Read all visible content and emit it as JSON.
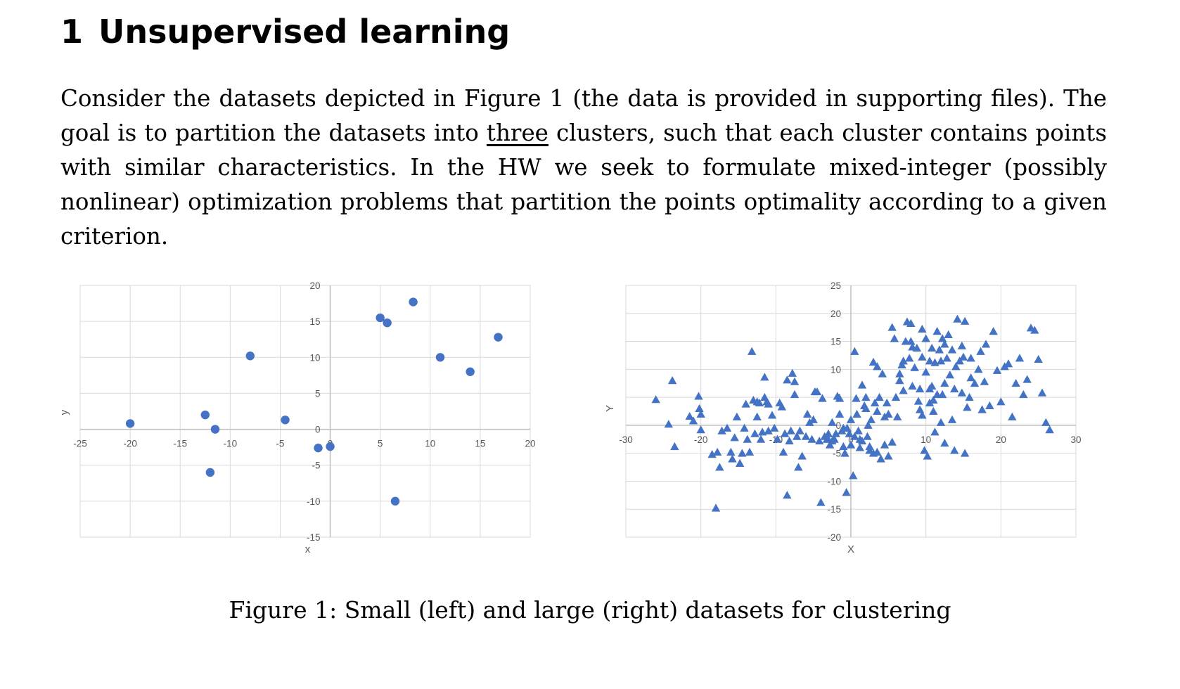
{
  "section": {
    "number": "1",
    "title": "Unsupervised learning"
  },
  "paragraph": {
    "before_underline": "Consider the datasets depicted in Figure 1 (the data is provided in supporting files). The goal is to partition the datasets into ",
    "underlined": "three",
    "after_underline": " clusters, such that each cluster contains points with similar characteristics. In the HW we seek to formulate mixed-integer (possibly nonlinear) optimization problems that partition the points optimality according to a given criterion."
  },
  "colors": {
    "marker": "#4472c4",
    "grid": "#d9d9d9",
    "axis": "#bfbfbf",
    "tick_text": "#595959"
  },
  "chart_data": [
    {
      "type": "scatter",
      "marker": "circle",
      "xlabel": "x",
      "ylabel": "y",
      "xlim": [
        -25,
        20
      ],
      "ylim": [
        -15,
        20
      ],
      "x_ticks": [
        -25,
        -20,
        -15,
        -10,
        -5,
        0,
        5,
        10,
        15,
        20
      ],
      "y_ticks": [
        -15,
        -10,
        -5,
        0,
        5,
        10,
        15,
        20
      ],
      "grid": true,
      "points": [
        [
          -20,
          0.8
        ],
        [
          -12.5,
          2
        ],
        [
          -11.5,
          0
        ],
        [
          -12,
          -6
        ],
        [
          -8,
          10.2
        ],
        [
          -4.5,
          1.3
        ],
        [
          -1.2,
          -2.6
        ],
        [
          0,
          -2.4
        ],
        [
          5,
          15.5
        ],
        [
          5.7,
          14.8
        ],
        [
          8.3,
          17.7
        ],
        [
          11,
          10
        ],
        [
          14,
          8
        ],
        [
          16.8,
          12.8
        ],
        [
          6.5,
          -10
        ]
      ]
    },
    {
      "type": "scatter",
      "marker": "triangle",
      "xlabel": "X",
      "ylabel": "Y",
      "xlim": [
        -30,
        30
      ],
      "ylim": [
        -20,
        25
      ],
      "x_ticks": [
        -30,
        -20,
        -10,
        0,
        10,
        20,
        30
      ],
      "y_ticks": [
        -20,
        -15,
        -10,
        -5,
        0,
        5,
        10,
        15,
        20,
        25
      ],
      "grid": true,
      "points": [
        [
          -26,
          4.6
        ],
        [
          -23.8,
          8
        ],
        [
          -24.3,
          0.2
        ],
        [
          -23.5,
          -3.8
        ],
        [
          -21.5,
          1.6
        ],
        [
          -21,
          0.8
        ],
        [
          -20.3,
          5.2
        ],
        [
          -20.2,
          3
        ],
        [
          -20,
          2
        ],
        [
          -20,
          -0.8
        ],
        [
          -18.5,
          -5.2
        ],
        [
          -18,
          -14.8
        ],
        [
          -17.8,
          -4.8
        ],
        [
          -17.5,
          -7.5
        ],
        [
          -17.2,
          -1
        ],
        [
          -16.5,
          -0.5
        ],
        [
          -16,
          -4.8
        ],
        [
          -15.8,
          -6
        ],
        [
          -15.5,
          -2.2
        ],
        [
          -15.2,
          1.5
        ],
        [
          -14.8,
          -6.8
        ],
        [
          -14.5,
          -5
        ],
        [
          -14.2,
          -0.5
        ],
        [
          -14,
          3.8
        ],
        [
          -13.8,
          -2.5
        ],
        [
          -13.5,
          -4.8
        ],
        [
          -13.2,
          13.2
        ],
        [
          -13,
          4.5
        ],
        [
          -12.8,
          -1.5
        ],
        [
          -12.5,
          4.2
        ],
        [
          -12.5,
          1.5
        ],
        [
          -12.2,
          4
        ],
        [
          -12,
          -2.5
        ],
        [
          -11.8,
          -1.2
        ],
        [
          -11.5,
          8.6
        ],
        [
          -11.5,
          5
        ],
        [
          -11.2,
          4.2
        ],
        [
          -11,
          3.8
        ],
        [
          -11,
          -1
        ],
        [
          -10.5,
          1.8
        ],
        [
          -10.2,
          -0.5
        ],
        [
          -9.8,
          -2.5
        ],
        [
          -9.5,
          4
        ],
        [
          -9.2,
          3.3
        ],
        [
          -9,
          -4.8
        ],
        [
          -8.8,
          -1.5
        ],
        [
          -8.5,
          8.1
        ],
        [
          -8.5,
          -12.5
        ],
        [
          -8.2,
          -2.8
        ],
        [
          -8,
          -1
        ],
        [
          -7.8,
          9.3
        ],
        [
          -7.5,
          7.8
        ],
        [
          -7.5,
          5.5
        ],
        [
          -7.2,
          -2
        ],
        [
          -7,
          -7.5
        ],
        [
          -6.8,
          -1
        ],
        [
          -6.5,
          -5.5
        ],
        [
          -6,
          -2
        ],
        [
          -5.8,
          2
        ],
        [
          -5.5,
          0.5
        ],
        [
          -5.2,
          -2.5
        ],
        [
          -5,
          1
        ],
        [
          -4.8,
          6
        ],
        [
          -4.5,
          6
        ],
        [
          -4.2,
          -2.8
        ],
        [
          -4,
          -13.8
        ],
        [
          -3.8,
          4.8
        ],
        [
          -3.5,
          -2
        ],
        [
          -3.2,
          -2.5
        ],
        [
          -3,
          -2.5
        ],
        [
          -2.8,
          -3.5
        ],
        [
          -2.5,
          0.5
        ],
        [
          -2.2,
          -2.5
        ],
        [
          -2,
          -1.5
        ],
        [
          -1.8,
          5.2
        ],
        [
          -1.5,
          2
        ],
        [
          -1.5,
          4.8
        ],
        [
          -1.2,
          -1
        ],
        [
          -1,
          -0.5
        ],
        [
          -0.8,
          -5
        ],
        [
          -0.6,
          -12
        ],
        [
          -0.5,
          -0.5
        ],
        [
          -0.2,
          -1.5
        ],
        [
          0,
          1
        ],
        [
          0.3,
          -9
        ],
        [
          0.5,
          13.2
        ],
        [
          0.7,
          4.8
        ],
        [
          0.8,
          2
        ],
        [
          1,
          -1
        ],
        [
          1.2,
          -2.5
        ],
        [
          1.2,
          -4
        ],
        [
          1.5,
          7.2
        ],
        [
          1.8,
          3.5
        ],
        [
          2,
          3
        ],
        [
          2,
          5
        ],
        [
          2.2,
          -2
        ],
        [
          2.3,
          0
        ],
        [
          2.5,
          -4.5
        ],
        [
          2.7,
          1
        ],
        [
          3,
          -5
        ],
        [
          3,
          11.3
        ],
        [
          3.2,
          4
        ],
        [
          3.5,
          10.5
        ],
        [
          3.5,
          2.5
        ],
        [
          3.8,
          5
        ],
        [
          4,
          -6
        ],
        [
          4.2,
          9.2
        ],
        [
          4.5,
          1.5
        ],
        [
          4.5,
          -3.5
        ],
        [
          4.8,
          4
        ],
        [
          5,
          -5.5
        ],
        [
          5,
          2
        ],
        [
          5.5,
          -3
        ],
        [
          5.5,
          17.5
        ],
        [
          5.8,
          15.5
        ],
        [
          6,
          5
        ],
        [
          6.2,
          1.5
        ],
        [
          6.5,
          9.2
        ],
        [
          6.5,
          8
        ],
        [
          6.8,
          10.8
        ],
        [
          7,
          11.5
        ],
        [
          7,
          6.2
        ],
        [
          7.3,
          15
        ],
        [
          7.5,
          18.5
        ],
        [
          7.8,
          12
        ],
        [
          8,
          18.2
        ],
        [
          8,
          15
        ],
        [
          8.2,
          14
        ],
        [
          8.5,
          10.3
        ],
        [
          8.8,
          13.8
        ],
        [
          9,
          4.3
        ],
        [
          9.2,
          2.8
        ],
        [
          9.5,
          17.2
        ],
        [
          9.5,
          1.8
        ],
        [
          9.8,
          -4.5
        ],
        [
          10,
          15.5
        ],
        [
          10,
          9.5
        ],
        [
          10.2,
          -5.5
        ],
        [
          10.5,
          11.5
        ],
        [
          10.5,
          6.5
        ],
        [
          10.8,
          7
        ],
        [
          11,
          4.5
        ],
        [
          11.2,
          11.2
        ],
        [
          11.5,
          5.5
        ],
        [
          11.8,
          13.5
        ],
        [
          12,
          11.5
        ],
        [
          12.2,
          5.5
        ],
        [
          12.5,
          7.5
        ],
        [
          12.5,
          14.5
        ],
        [
          12.8,
          12
        ],
        [
          13,
          16.2
        ],
        [
          13.2,
          9
        ],
        [
          13.5,
          1
        ],
        [
          13.8,
          6.5
        ],
        [
          14,
          10.5
        ],
        [
          14.2,
          19
        ],
        [
          14.5,
          11.5
        ],
        [
          14.8,
          5.8
        ],
        [
          15,
          12.2
        ],
        [
          15.2,
          18.6
        ],
        [
          15.5,
          3.2
        ],
        [
          15.8,
          5
        ],
        [
          16,
          12
        ],
        [
          16.5,
          7.5
        ],
        [
          17,
          10
        ],
        [
          17.3,
          13.2
        ],
        [
          17.5,
          2.8
        ],
        [
          18,
          14.5
        ],
        [
          18.5,
          3.5
        ],
        [
          19,
          16.8
        ],
        [
          19.5,
          9.8
        ],
        [
          20,
          4.2
        ],
        [
          20.5,
          10.5
        ],
        [
          21,
          11
        ],
        [
          21.5,
          1.5
        ],
        [
          22,
          7.5
        ],
        [
          22.5,
          12
        ],
        [
          23,
          5.5
        ],
        [
          23.5,
          8.2
        ],
        [
          24,
          17.4
        ],
        [
          24.5,
          17
        ],
        [
          25,
          11.8
        ],
        [
          25.5,
          5.8
        ],
        [
          26,
          0.5
        ],
        [
          26.5,
          -0.8
        ],
        [
          9.5,
          12.2
        ],
        [
          10.8,
          13.8
        ],
        [
          11.5,
          16.8
        ],
        [
          12.2,
          15.5
        ],
        [
          13.5,
          13.5
        ],
        [
          14.8,
          14.2
        ],
        [
          16,
          8.5
        ],
        [
          17.8,
          7.8
        ],
        [
          8.2,
          7
        ],
        [
          9.2,
          6.5
        ],
        [
          10.5,
          4
        ],
        [
          11,
          2.5
        ],
        [
          12,
          0.5
        ],
        [
          11.2,
          -1.2
        ],
        [
          12.5,
          -3.2
        ],
        [
          13.8,
          -4.5
        ],
        [
          15.2,
          -5
        ],
        [
          -2.5,
          -2.8
        ],
        [
          -3,
          -1.5
        ],
        [
          0.5,
          -2
        ],
        [
          1.5,
          -2.8
        ],
        [
          2.5,
          -3.8
        ],
        [
          3.5,
          -4.8
        ],
        [
          0,
          -3.5
        ],
        [
          -1,
          -3.8
        ]
      ]
    }
  ],
  "caption": "Figure 1: Small (left) and large (right) datasets for clustering"
}
